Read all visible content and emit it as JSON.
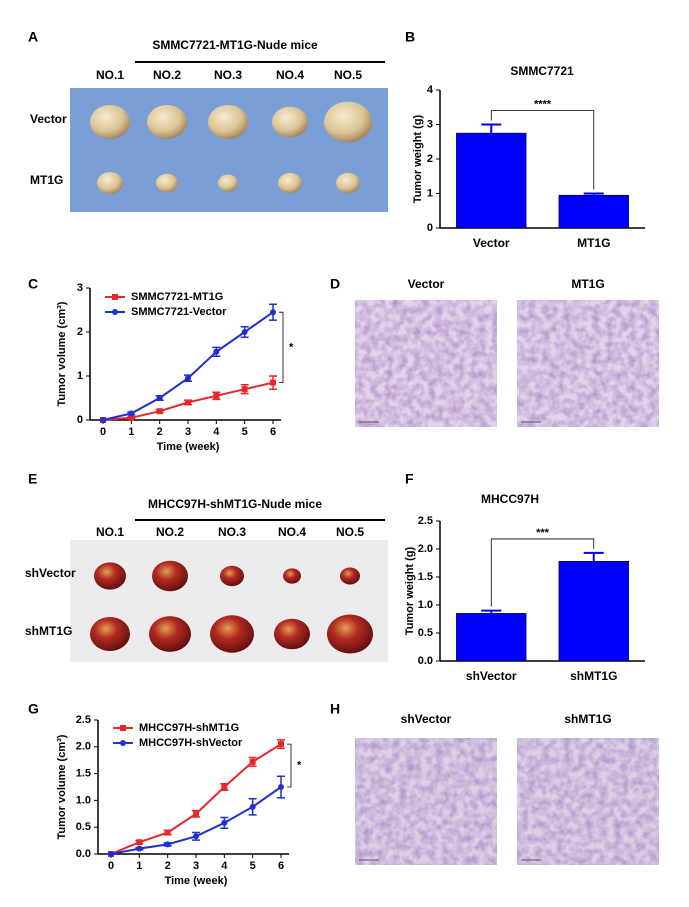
{
  "photo_panels": [
    {
      "label": "A",
      "title": "SMMC7721-MT1G-Nude mice",
      "columns": [
        "NO.1",
        "NO.2",
        "NO.3",
        "NO.4",
        "NO.5"
      ],
      "rows": [
        "Vector",
        "MT1G"
      ]
    },
    {
      "label": "D",
      "columns": [
        "Vector",
        "MT1G"
      ]
    },
    {
      "label": "E",
      "title": "MHCC97H-shMT1G-Nude mice",
      "columns": [
        "NO.1",
        "NO.2",
        "NO.3",
        "NO.4",
        "NO.5"
      ],
      "rows": [
        "shVector",
        "shMT1G"
      ]
    },
    {
      "label": "H",
      "columns": [
        "shVector",
        "shMT1G"
      ]
    }
  ],
  "chart_data": [
    {
      "type": "bar",
      "label": "B",
      "title": "SMMC7721",
      "y_label": "Tumor weight (g)",
      "categories": [
        "Vector",
        "MT1G"
      ],
      "values": [
        2.75,
        0.95
      ],
      "errors": [
        0.25,
        0.05
      ],
      "color": "#0000ff",
      "ylim": [
        0,
        4
      ],
      "yticks": [
        0,
        1,
        2,
        3,
        4
      ],
      "annotation": "****"
    },
    {
      "type": "line",
      "label": "C",
      "x_label": "Time (week)",
      "y_label": "Tumor volume (cm³)",
      "x": [
        0,
        1,
        2,
        3,
        4,
        5,
        6
      ],
      "xlim": [
        0,
        6
      ],
      "xticks": [
        0,
        1,
        2,
        3,
        4,
        5,
        6
      ],
      "ylim": [
        0,
        3
      ],
      "yticks": [
        0,
        1,
        2,
        3
      ],
      "annotation": "*",
      "series": [
        {
          "name": "SMMC7721-MT1G",
          "color": "#e8262b",
          "marker": "square",
          "values": [
            0,
            0.05,
            0.2,
            0.4,
            0.55,
            0.7,
            0.85
          ],
          "errors": [
            0,
            0.02,
            0.03,
            0.05,
            0.08,
            0.1,
            0.15
          ]
        },
        {
          "name": "SMMC7721-Vector",
          "color": "#1f2fd0",
          "marker": "circle",
          "values": [
            0,
            0.15,
            0.5,
            0.95,
            1.55,
            2.0,
            2.45
          ],
          "errors": [
            0,
            0.03,
            0.05,
            0.07,
            0.1,
            0.12,
            0.18
          ]
        }
      ]
    },
    {
      "type": "bar",
      "label": "F",
      "title": "MHCC97H",
      "y_label": "Tumor weight (g)",
      "categories": [
        "shVector",
        "shMT1G"
      ],
      "values": [
        0.85,
        1.78
      ],
      "errors": [
        0.05,
        0.15
      ],
      "color": "#0000ff",
      "ylim": [
        0,
        2.5
      ],
      "yticks": [
        {
          "value": 0,
          "label": "0.0"
        },
        0.5,
        {
          "value": 1,
          "label": "1.0"
        },
        1.5,
        {
          "value": 2,
          "label": "2.0"
        },
        2.5
      ],
      "annotation": "***"
    },
    {
      "type": "line",
      "label": "G",
      "x_label": "Time (week)",
      "y_label": "Tumor volume (cm³)",
      "x": [
        0,
        1,
        2,
        3,
        4,
        5,
        6
      ],
      "xlim": [
        0,
        6
      ],
      "xticks": [
        0,
        1,
        2,
        3,
        4,
        5,
        6
      ],
      "ylim": [
        0,
        2.5
      ],
      "yticks": [
        {
          "value": 0,
          "label": "0.0"
        },
        0.5,
        {
          "value": 1,
          "label": "1.0"
        },
        1.5,
        {
          "value": 2,
          "label": "2.0"
        },
        2.5
      ],
      "annotation": "*",
      "series": [
        {
          "name": "MHCC97H-shMT1G",
          "color": "#e8262b",
          "marker": "square",
          "values": [
            0,
            0.22,
            0.4,
            0.75,
            1.25,
            1.72,
            2.05
          ],
          "errors": [
            0,
            0.03,
            0.04,
            0.06,
            0.06,
            0.08,
            0.08
          ]
        },
        {
          "name": "MHCC97H-shVector",
          "color": "#1f2fd0",
          "marker": "circle",
          "values": [
            0,
            0.1,
            0.18,
            0.33,
            0.58,
            0.88,
            1.25
          ],
          "errors": [
            0,
            0.02,
            0.03,
            0.07,
            0.1,
            0.15,
            0.2
          ]
        }
      ]
    }
  ]
}
